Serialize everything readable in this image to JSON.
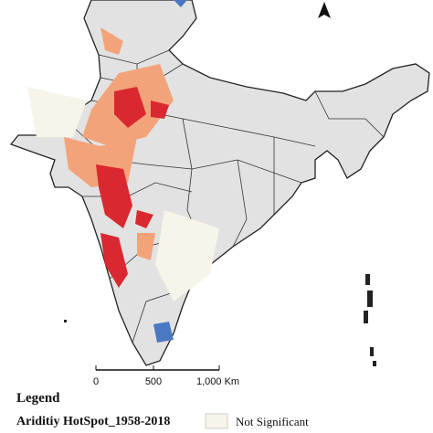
{
  "legend": {
    "title": "Legend",
    "layer": "Ariditiy HotSpot_1958-2018",
    "items": [
      "Not Significant"
    ]
  },
  "scale_bar": {
    "labels": [
      "0",
      "500",
      "1,000 Km"
    ]
  }
}
